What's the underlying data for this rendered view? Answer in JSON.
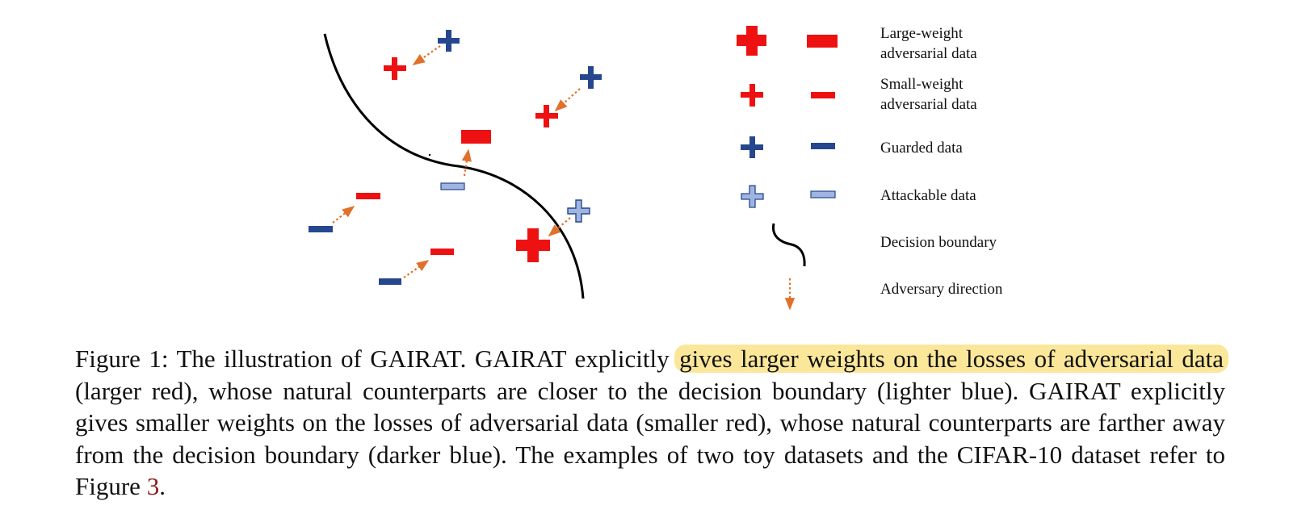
{
  "colors": {
    "large_weight_red": "#ee1111",
    "guarded_blue": "#26478e",
    "attackable_blue": "#9fb5e0",
    "boundary": "#000000",
    "arrow_orange": "#e0702a",
    "highlight": "#fbe79a",
    "reference_link": "#8b1a1a"
  },
  "legend": {
    "large_weight_line1": "Large-weight",
    "large_weight_line2": "adversarial data",
    "small_weight_line1": "Small-weight",
    "small_weight_line2": "adversarial data",
    "guarded": "Guarded data",
    "attackable": "Attackable data",
    "boundary": "Decision boundary",
    "direction": "Adversary direction"
  },
  "caption": {
    "prefix": "Figure 1:  The illustration of GAIRAT. GAIRAT explicitly ",
    "highlight": "gives larger weights on the losses of adversarial data",
    "middle": " (larger red), whose natural counterparts are closer to the decision boundary (lighter blue).  GAIRAT explicitly gives smaller weights on the losses of adversarial data (smaller red), whose natural counterparts are farther away from the decision boundary (darker blue). The examples of two toy datasets and the CIFAR-10 dataset refer to Figure ",
    "ref": "3",
    "suffix": "."
  }
}
